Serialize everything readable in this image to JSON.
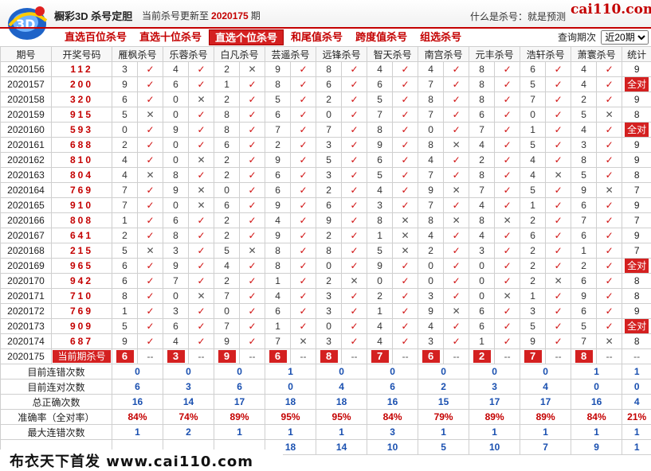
{
  "header": {
    "site_title": "橱彩3D 杀号定胆",
    "update_prefix": "当前杀号更新至",
    "update_issue": "2020175",
    "update_suffix": "期",
    "whatis": "什么是杀号：就是预测",
    "domain": "cai110.com"
  },
  "nav": {
    "tabs": [
      "直选百位杀号",
      "直选十位杀号",
      "直选个位杀号",
      "和尾值杀号",
      "跨度值杀号",
      "组选杀号"
    ],
    "active_index": 2
  },
  "period": {
    "label": "查询期次",
    "selected": "近20期"
  },
  "table": {
    "headers": [
      "期号",
      "开奖号码",
      "雁枫杀号",
      "乐蓉杀号",
      "白凡杀号",
      "芸遥杀号",
      "远锋杀号",
      "智天杀号",
      "南宫杀号",
      "元丰杀号",
      "浩轩杀号",
      "萧寰杀号",
      "统计"
    ],
    "rows": [
      {
        "issue": "2020156",
        "nums": "112",
        "v": [
          "3",
          "4",
          "2",
          "9",
          "8",
          "4",
          "4",
          "8",
          "6",
          "4"
        ],
        "m": [
          "ok",
          "ok",
          "bad",
          "ok",
          "ok",
          "ok",
          "ok",
          "ok",
          "ok",
          "ok"
        ],
        "stat": "9"
      },
      {
        "issue": "2020157",
        "nums": "200",
        "v": [
          "9",
          "6",
          "1",
          "8",
          "6",
          "6",
          "7",
          "8",
          "5",
          "4"
        ],
        "m": [
          "ok",
          "ok",
          "ok",
          "ok",
          "ok",
          "ok",
          "ok",
          "ok",
          "ok",
          "ok"
        ],
        "stat": "全对"
      },
      {
        "issue": "2020158",
        "nums": "320",
        "v": [
          "6",
          "0",
          "2",
          "5",
          "2",
          "5",
          "8",
          "8",
          "7",
          "2"
        ],
        "m": [
          "ok",
          "bad",
          "ok",
          "ok",
          "ok",
          "ok",
          "ok",
          "ok",
          "ok",
          "ok"
        ],
        "stat": "9"
      },
      {
        "issue": "2020159",
        "nums": "915",
        "v": [
          "5",
          "0",
          "8",
          "6",
          "0",
          "7",
          "7",
          "6",
          "0",
          "5"
        ],
        "m": [
          "bad",
          "ok",
          "ok",
          "ok",
          "ok",
          "ok",
          "ok",
          "ok",
          "ok",
          "bad"
        ],
        "stat": "8"
      },
      {
        "issue": "2020160",
        "nums": "593",
        "v": [
          "0",
          "9",
          "8",
          "7",
          "7",
          "8",
          "0",
          "7",
          "1",
          "4"
        ],
        "m": [
          "ok",
          "ok",
          "ok",
          "ok",
          "ok",
          "ok",
          "ok",
          "ok",
          "ok",
          "ok"
        ],
        "stat": "全对"
      },
      {
        "issue": "2020161",
        "nums": "688",
        "v": [
          "2",
          "0",
          "6",
          "2",
          "3",
          "9",
          "8",
          "4",
          "5",
          "3"
        ],
        "m": [
          "ok",
          "ok",
          "ok",
          "ok",
          "ok",
          "ok",
          "bad",
          "ok",
          "ok",
          "ok"
        ],
        "stat": "9"
      },
      {
        "issue": "2020162",
        "nums": "810",
        "v": [
          "4",
          "0",
          "2",
          "9",
          "5",
          "6",
          "4",
          "2",
          "4",
          "8"
        ],
        "m": [
          "ok",
          "bad",
          "ok",
          "ok",
          "ok",
          "ok",
          "ok",
          "ok",
          "ok",
          "ok"
        ],
        "stat": "9"
      },
      {
        "issue": "2020163",
        "nums": "804",
        "v": [
          "4",
          "8",
          "2",
          "6",
          "3",
          "5",
          "7",
          "8",
          "4",
          "5"
        ],
        "m": [
          "bad",
          "ok",
          "ok",
          "ok",
          "ok",
          "ok",
          "ok",
          "ok",
          "bad",
          "ok"
        ],
        "stat": "8"
      },
      {
        "issue": "2020164",
        "nums": "769",
        "v": [
          "7",
          "9",
          "0",
          "6",
          "2",
          "4",
          "9",
          "7",
          "5",
          "9"
        ],
        "m": [
          "ok",
          "bad",
          "ok",
          "ok",
          "ok",
          "ok",
          "bad",
          "ok",
          "ok",
          "bad"
        ],
        "stat": "7"
      },
      {
        "issue": "2020165",
        "nums": "910",
        "v": [
          "7",
          "0",
          "6",
          "9",
          "6",
          "3",
          "7",
          "4",
          "1",
          "6"
        ],
        "m": [
          "ok",
          "bad",
          "ok",
          "ok",
          "ok",
          "ok",
          "ok",
          "ok",
          "ok",
          "ok"
        ],
        "stat": "9"
      },
      {
        "issue": "2020166",
        "nums": "808",
        "v": [
          "1",
          "6",
          "2",
          "4",
          "9",
          "8",
          "8",
          "8",
          "2",
          "7"
        ],
        "m": [
          "ok",
          "ok",
          "ok",
          "ok",
          "ok",
          "bad",
          "bad",
          "bad",
          "ok",
          "ok"
        ],
        "stat": "7"
      },
      {
        "issue": "2020167",
        "nums": "641",
        "v": [
          "2",
          "8",
          "2",
          "9",
          "2",
          "1",
          "4",
          "4",
          "6",
          "6"
        ],
        "m": [
          "ok",
          "ok",
          "ok",
          "ok",
          "ok",
          "bad",
          "ok",
          "ok",
          "ok",
          "ok"
        ],
        "stat": "9"
      },
      {
        "issue": "2020168",
        "nums": "215",
        "v": [
          "5",
          "3",
          "5",
          "8",
          "8",
          "5",
          "2",
          "3",
          "2",
          "1"
        ],
        "m": [
          "bad",
          "ok",
          "bad",
          "ok",
          "ok",
          "bad",
          "ok",
          "ok",
          "ok",
          "ok"
        ],
        "stat": "7"
      },
      {
        "issue": "2020169",
        "nums": "965",
        "v": [
          "6",
          "9",
          "4",
          "8",
          "0",
          "9",
          "0",
          "0",
          "2",
          "2"
        ],
        "m": [
          "ok",
          "ok",
          "ok",
          "ok",
          "ok",
          "ok",
          "ok",
          "ok",
          "ok",
          "ok"
        ],
        "stat": "全对"
      },
      {
        "issue": "2020170",
        "nums": "942",
        "v": [
          "6",
          "7",
          "2",
          "1",
          "2",
          "0",
          "0",
          "0",
          "2",
          "6"
        ],
        "m": [
          "ok",
          "ok",
          "ok",
          "ok",
          "bad",
          "ok",
          "ok",
          "ok",
          "bad",
          "ok"
        ],
        "stat": "8"
      },
      {
        "issue": "2020171",
        "nums": "710",
        "v": [
          "8",
          "0",
          "7",
          "4",
          "3",
          "2",
          "3",
          "0",
          "1",
          "9"
        ],
        "m": [
          "ok",
          "bad",
          "ok",
          "ok",
          "ok",
          "ok",
          "ok",
          "bad",
          "ok",
          "ok"
        ],
        "stat": "8"
      },
      {
        "issue": "2020172",
        "nums": "769",
        "v": [
          "1",
          "3",
          "0",
          "6",
          "3",
          "1",
          "9",
          "6",
          "3",
          "6"
        ],
        "m": [
          "ok",
          "ok",
          "ok",
          "ok",
          "ok",
          "ok",
          "bad",
          "ok",
          "ok",
          "ok"
        ],
        "stat": "9"
      },
      {
        "issue": "2020173",
        "nums": "909",
        "v": [
          "5",
          "6",
          "7",
          "1",
          "0",
          "4",
          "4",
          "6",
          "5",
          "5"
        ],
        "m": [
          "ok",
          "ok",
          "ok",
          "ok",
          "ok",
          "ok",
          "ok",
          "ok",
          "ok",
          "ok"
        ],
        "stat": "全对"
      },
      {
        "issue": "2020174",
        "nums": "687",
        "v": [
          "9",
          "4",
          "9",
          "7",
          "3",
          "4",
          "3",
          "1",
          "9",
          "7"
        ],
        "m": [
          "ok",
          "ok",
          "ok",
          "bad",
          "ok",
          "ok",
          "ok",
          "ok",
          "ok",
          "bad"
        ],
        "stat": "8"
      }
    ],
    "current": {
      "issue": "2020175",
      "label": "当前期杀号",
      "values": [
        "6",
        "3",
        "9",
        "6",
        "8",
        "7",
        "6",
        "2",
        "7",
        "8"
      ],
      "dash": "--"
    },
    "stats": [
      {
        "label": "目前连错次数",
        "values": [
          "0",
          "0",
          "0",
          "1",
          "0",
          "0",
          "0",
          "0",
          "0",
          "1",
          "1"
        ],
        "pct": false
      },
      {
        "label": "目前连对次数",
        "values": [
          "6",
          "3",
          "6",
          "0",
          "4",
          "6",
          "2",
          "3",
          "4",
          "0",
          "0"
        ],
        "pct": false
      },
      {
        "label": "总正确次数",
        "values": [
          "16",
          "14",
          "17",
          "18",
          "18",
          "16",
          "15",
          "17",
          "17",
          "16",
          "4"
        ],
        "pct": false
      },
      {
        "label": "准确率（全对率）",
        "values": [
          "84%",
          "74%",
          "89%",
          "95%",
          "95%",
          "84%",
          "79%",
          "89%",
          "89%",
          "84%",
          "21%"
        ],
        "pct": true
      },
      {
        "label": "最大连错次数",
        "values": [
          "1",
          "2",
          "1",
          "1",
          "1",
          "3",
          "1",
          "1",
          "1",
          "1",
          "1"
        ],
        "pct": false
      },
      {
        "label": "",
        "values": [
          "",
          "",
          "",
          "18",
          "14",
          "10",
          "5",
          "10",
          "7",
          "9",
          "1"
        ],
        "pct": false
      }
    ]
  },
  "footer": {
    "text": "布衣天下首发 www.cai110.com"
  }
}
